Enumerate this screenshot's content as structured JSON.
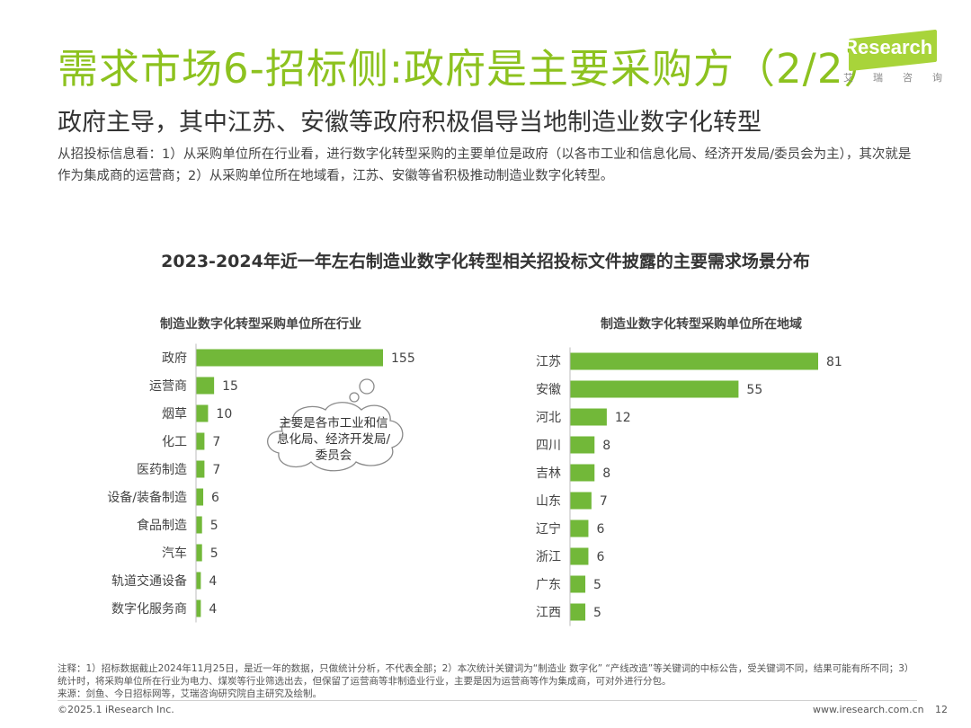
{
  "header": {
    "title": "需求市场6-招标侧:政府是主要采购方（2/2）",
    "logo_text": "iResearch",
    "logo_sub": "艾瑞咨询"
  },
  "subtitle": "政府主导，其中江苏、安徽等政府积极倡导当地制造业数字化转型",
  "description": "从招投标信息看：1）从采购单位所在行业看，进行数字化转型采购的主要单位是政府（以各市工业和信息化局、经济开发局/委员会为主），其次就是作为集成商的运营商；2）从采购单位所在地域看，江苏、安徽等省积极推动制造业数字化转型。",
  "chart_data": [
    {
      "type": "bar",
      "orientation": "horizontal",
      "title": "2023-2024年近一年左右制造业数字化转型相关招投标文件披露的主要需求场景分布",
      "subtitle": "制造业数字化转型采购单位所在行业",
      "categories": [
        "政府",
        "运营商",
        "烟草",
        "化工",
        "医药制造",
        "设备/装备制造",
        "食品制造",
        "汽车",
        "轨道交通设备",
        "数字化服务商"
      ],
      "values": [
        155,
        15,
        10,
        7,
        7,
        6,
        5,
        5,
        4,
        4
      ],
      "color": "#72b839"
    },
    {
      "type": "bar",
      "orientation": "horizontal",
      "subtitle": "制造业数字化转型采购单位所在地域",
      "categories": [
        "江苏",
        "安徽",
        "河北",
        "四川",
        "吉林",
        "山东",
        "辽宁",
        "浙江",
        "广东",
        "江西"
      ],
      "values": [
        81,
        55,
        12,
        8,
        8,
        7,
        6,
        6,
        5,
        5
      ],
      "color": "#72b839"
    }
  ],
  "callout": "主要是各市工业和信息化局、经济开发局/委员会",
  "footnote": {
    "note": "注释：1）招标数据截止2024年11月25日，是近一年的数据，只做统计分析，不代表全部；2）本次统计关键词为“制造业 数字化” “产线改造”等关键词的中标公告，受关键词不同，结果可能有所不同；3）统计时，将采购单位所在行业为电力、煤炭等行业筛选出去，但保留了运营商等非制造业行业，主要是因为运营商等作为集成商，可对外进行分包。",
    "source": "来源：剑鱼、今日招标网等，艾瑞咨询研究院自主研究及绘制。"
  },
  "footer": {
    "copyright": "©2025.1 iResearch Inc.",
    "url": "www.iresearch.com.cn",
    "page": "12"
  }
}
